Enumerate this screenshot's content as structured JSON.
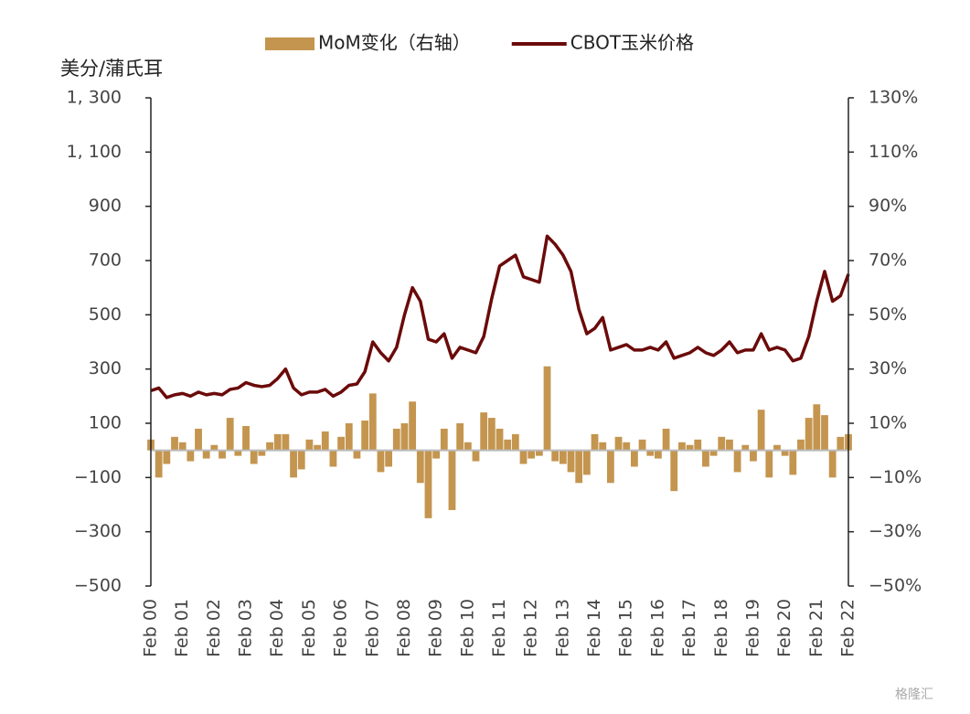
{
  "chart_data": {
    "type": "bar-line",
    "y_label": "美分/蒲氏耳",
    "watermark": "格隆汇",
    "categories": [
      "Feb 00",
      null,
      null,
      null,
      "Feb 01",
      null,
      null,
      null,
      "Feb 02",
      null,
      null,
      null,
      "Feb 03",
      null,
      null,
      null,
      "Feb 04",
      null,
      null,
      null,
      "Feb 05",
      null,
      null,
      null,
      "Feb 06",
      null,
      null,
      null,
      "Feb 07",
      null,
      null,
      null,
      "Feb 08",
      null,
      null,
      null,
      "Feb 09",
      null,
      null,
      null,
      "Feb 10",
      null,
      null,
      null,
      "Feb 11",
      null,
      null,
      null,
      "Feb 12",
      null,
      null,
      null,
      "Feb 13",
      null,
      null,
      null,
      "Feb 14",
      null,
      null,
      null,
      "Feb 15",
      null,
      null,
      null,
      "Feb 16",
      null,
      null,
      null,
      "Feb 17",
      null,
      null,
      null,
      "Feb 18",
      null,
      null,
      null,
      "Feb 19",
      null,
      null,
      null,
      "Feb 20",
      null,
      null,
      null,
      "Feb 21",
      null,
      null,
      null,
      "Feb 22"
    ],
    "series": [
      {
        "name": "MoM变化（右轴）",
        "color": "#c4954f",
        "axis": "y2",
        "kind": "bar",
        "values": [
          4,
          -10,
          -5,
          5,
          3,
          -4,
          8,
          -3,
          2,
          -3,
          12,
          -2,
          9,
          -5,
          -2,
          3,
          6,
          6,
          -10,
          -7,
          4,
          2,
          7,
          -6,
          5,
          10,
          -3,
          11,
          21,
          -8,
          -6,
          8,
          10,
          18,
          -12,
          -25,
          -3,
          8,
          -22,
          10,
          3,
          -4,
          14,
          12,
          8,
          4,
          6,
          -5,
          -3,
          -2,
          31,
          -4,
          -5,
          -8,
          -12,
          -9,
          6,
          3,
          -12,
          5,
          3,
          -6,
          4,
          -2,
          -3,
          8,
          -15,
          3,
          2,
          4,
          -6,
          -2,
          5,
          4,
          -8,
          2,
          -4,
          15,
          -10,
          2,
          -2,
          -9,
          4,
          12,
          17,
          13,
          -10,
          5,
          6
        ]
      },
      {
        "name": "CBOT玉米价格",
        "color": "#6b0a0a",
        "kind": "line",
        "values": [
          220,
          230,
          195,
          205,
          210,
          200,
          215,
          205,
          210,
          205,
          225,
          230,
          250,
          240,
          235,
          240,
          265,
          300,
          230,
          205,
          215,
          215,
          225,
          200,
          215,
          240,
          245,
          290,
          400,
          360,
          330,
          380,
          500,
          600,
          550,
          410,
          400,
          430,
          340,
          380,
          370,
          360,
          420,
          560,
          680,
          700,
          720,
          640,
          630,
          620,
          790,
          760,
          720,
          660,
          520,
          430,
          450,
          490,
          370,
          380,
          390,
          370,
          370,
          380,
          370,
          400,
          340,
          350,
          360,
          380,
          360,
          350,
          370,
          400,
          360,
          370,
          370,
          430,
          370,
          380,
          370,
          330,
          340,
          420,
          550,
          660,
          550,
          570,
          650
        ]
      }
    ],
    "ylim": [
      -500,
      1300
    ],
    "yticks": [
      {
        "value": 1300,
        "label": "1, 300"
      },
      {
        "value": 1100,
        "label": "1, 100"
      },
      900,
      700,
      500,
      300,
      100,
      {
        "value": -100,
        "label": "−100"
      },
      {
        "value": -300,
        "label": "−300"
      },
      {
        "value": -500,
        "label": "−500"
      }
    ],
    "y2lim": [
      -50,
      130
    ],
    "y2ticks": [
      {
        "value": 130,
        "label": "130%"
      },
      {
        "value": 110,
        "label": "110%"
      },
      {
        "value": 90,
        "label": "90%"
      },
      {
        "value": 70,
        "label": "70%"
      },
      {
        "value": 50,
        "label": "50%"
      },
      {
        "value": 30,
        "label": "30%"
      },
      {
        "value": 10,
        "label": "10%"
      },
      {
        "value": -10,
        "label": "−10%"
      },
      {
        "value": -30,
        "label": "−30%"
      },
      {
        "value": -50,
        "label": "−50%"
      }
    ],
    "legend": "top"
  }
}
